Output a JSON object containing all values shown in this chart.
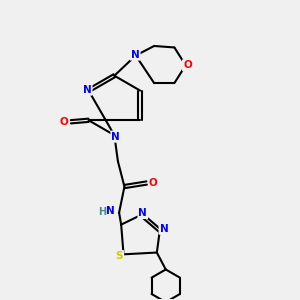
{
  "bg_color": "#f0f0f0",
  "atom_colors": {
    "C": "#000000",
    "N": "#0000ff",
    "O": "#ff0000",
    "S": "#cccc00",
    "H": "#4a8a8a"
  },
  "bond_color": "#000000",
  "line_width": 1.5
}
